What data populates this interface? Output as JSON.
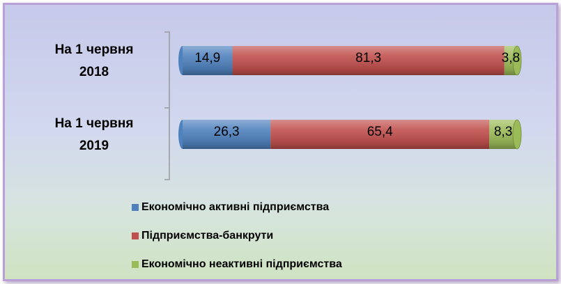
{
  "chart_data": {
    "type": "bar",
    "orientation": "horizontal",
    "stacked": true,
    "categories": [
      "На 1 червня 2018",
      "На 1 червня 2019"
    ],
    "series": [
      {
        "name": "Економічно активні підприємства",
        "color": "#4f81bd",
        "values": [
          14.9,
          26.3
        ],
        "value_labels": [
          "14,9",
          "26,3"
        ]
      },
      {
        "name": "Підприємства-банкрути",
        "color": "#c0504d",
        "values": [
          81.3,
          65.4
        ],
        "value_labels": [
          "81,3",
          "65,4"
        ]
      },
      {
        "name": "Економічно неактивні підприємства",
        "color": "#9bbb59",
        "values": [
          3.8,
          8.3
        ],
        "value_labels": [
          "3,8",
          "8,3"
        ]
      }
    ],
    "legend": "bottom"
  }
}
